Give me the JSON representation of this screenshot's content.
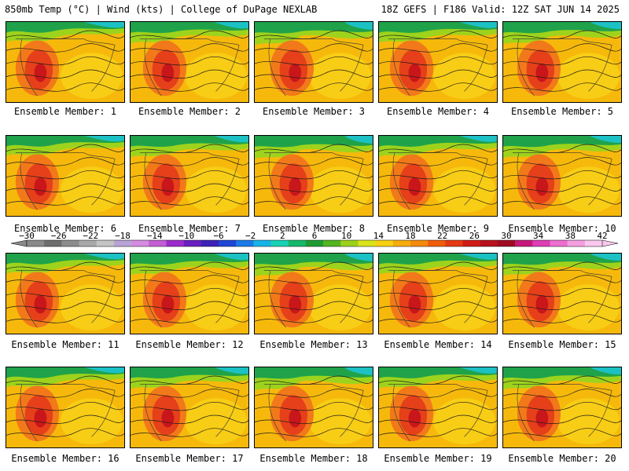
{
  "header": {
    "title_left": "850mb Temp (°C) | Wind (kts) | College of DuPage NEXLAB",
    "title_right": "18Z GEFS | F186 Valid: 12Z SAT JUN 14 2025"
  },
  "panels": [
    {
      "label": "Ensemble Member: 1"
    },
    {
      "label": "Ensemble Member: 2"
    },
    {
      "label": "Ensemble Member: 3"
    },
    {
      "label": "Ensemble Member: 4"
    },
    {
      "label": "Ensemble Member: 5"
    },
    {
      "label": "Ensemble Member: 6"
    },
    {
      "label": "Ensemble Member: 7"
    },
    {
      "label": "Ensemble Member: 8"
    },
    {
      "label": "Ensemble Member: 9"
    },
    {
      "label": "Ensemble Member: 10"
    },
    {
      "label": "Ensemble Member: 11"
    },
    {
      "label": "Ensemble Member: 12"
    },
    {
      "label": "Ensemble Member: 13"
    },
    {
      "label": "Ensemble Member: 14"
    },
    {
      "label": "Ensemble Member: 15"
    },
    {
      "label": "Ensemble Member: 16"
    },
    {
      "label": "Ensemble Member: 17"
    },
    {
      "label": "Ensemble Member: 18"
    },
    {
      "label": "Ensemble Member: 19"
    },
    {
      "label": "Ensemble Member: 20"
    }
  ],
  "colorbar": {
    "ticks": [
      "−30",
      "−26",
      "−22",
      "−18",
      "−14",
      "−10",
      "−6",
      "−2",
      "2",
      "6",
      "10",
      "14",
      "18",
      "22",
      "26",
      "30",
      "34",
      "38",
      "42"
    ],
    "colors": [
      "#8a8a8a",
      "#6e6e6e",
      "#8c8c8c",
      "#a8a8a8",
      "#c4c4c4",
      "#b9a3d6",
      "#d58be0",
      "#c35ed4",
      "#9c2ccc",
      "#6a1fc0",
      "#3d22b8",
      "#1f46d6",
      "#1d7ae8",
      "#18b3e8",
      "#19d1b5",
      "#16b86a",
      "#1e9c33",
      "#53b51f",
      "#9bd11c",
      "#dbe31c",
      "#f7d012",
      "#f5ad0d",
      "#f58a0c",
      "#f05d0c",
      "#e43a12",
      "#cf1c16",
      "#b8101c",
      "#9e0a22",
      "#c7187a",
      "#de3cb4",
      "#ec6ed0",
      "#f49ee0",
      "#fac8ee"
    ]
  }
}
